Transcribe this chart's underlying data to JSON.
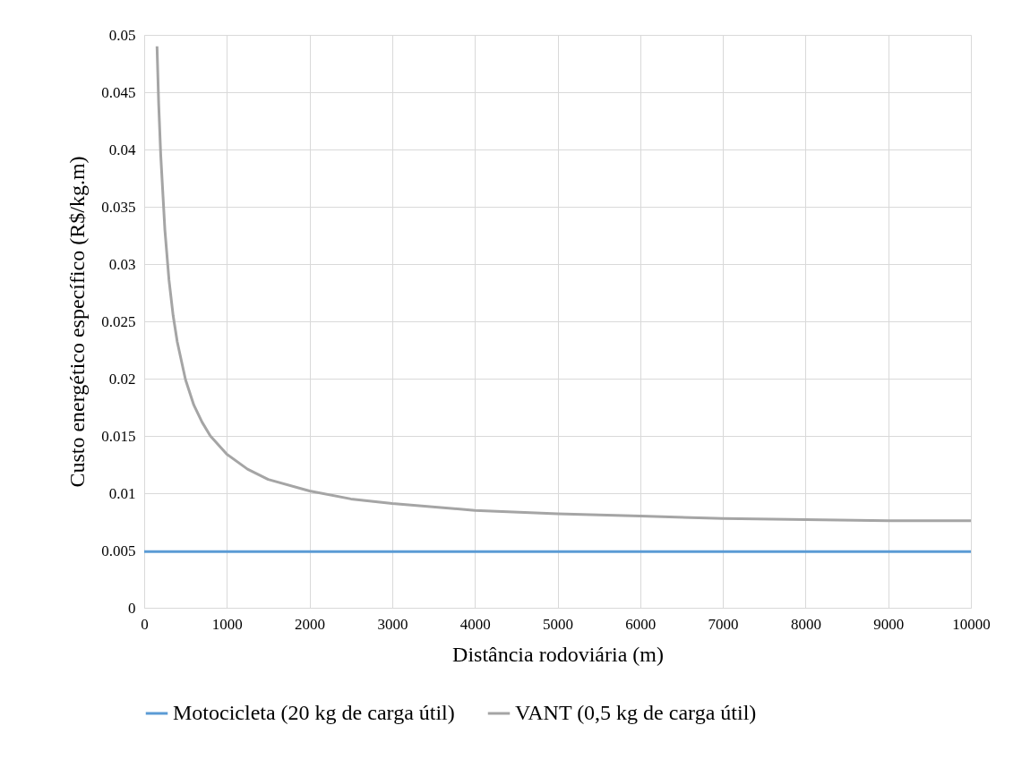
{
  "chart_data": {
    "type": "line",
    "xlabel": "Distância rodoviária (m)",
    "ylabel": "Custo energético específico (R$/kg.m)",
    "xlim": [
      0,
      10000
    ],
    "xticks": [
      0,
      1000,
      2000,
      3000,
      4000,
      5000,
      6000,
      7000,
      8000,
      9000,
      10000
    ],
    "ylim": [
      0,
      0.05
    ],
    "yticks": [
      0,
      0.005,
      0.01,
      0.015,
      0.02,
      0.025,
      0.03,
      0.035,
      0.04,
      0.045,
      0.05
    ],
    "grid": true,
    "legend": "bottom",
    "marker": "none",
    "line_style": "solid",
    "series": [
      {
        "name": "Motocicleta (20 kg de carga útil)",
        "color": "#5b9bd5",
        "x": [
          0,
          10000
        ],
        "values": [
          0.0049,
          0.0049
        ]
      },
      {
        "name": "VANT (0,5 kg de carga útil)",
        "color": "#a5a5a5",
        "x": [
          155,
          175,
          200,
          250,
          300,
          350,
          400,
          500,
          600,
          700,
          800,
          1000,
          1250,
          1500,
          2000,
          2500,
          3000,
          4000,
          5000,
          6000,
          7000,
          8000,
          9000,
          10000
        ],
        "values": [
          0.049,
          0.044,
          0.0395,
          0.033,
          0.0286,
          0.0255,
          0.0232,
          0.0199,
          0.0177,
          0.0162,
          0.015,
          0.0134,
          0.0121,
          0.0112,
          0.0102,
          0.0095,
          0.0091,
          0.0085,
          0.0082,
          0.008,
          0.0078,
          0.0077,
          0.0076,
          0.0076
        ]
      }
    ]
  }
}
